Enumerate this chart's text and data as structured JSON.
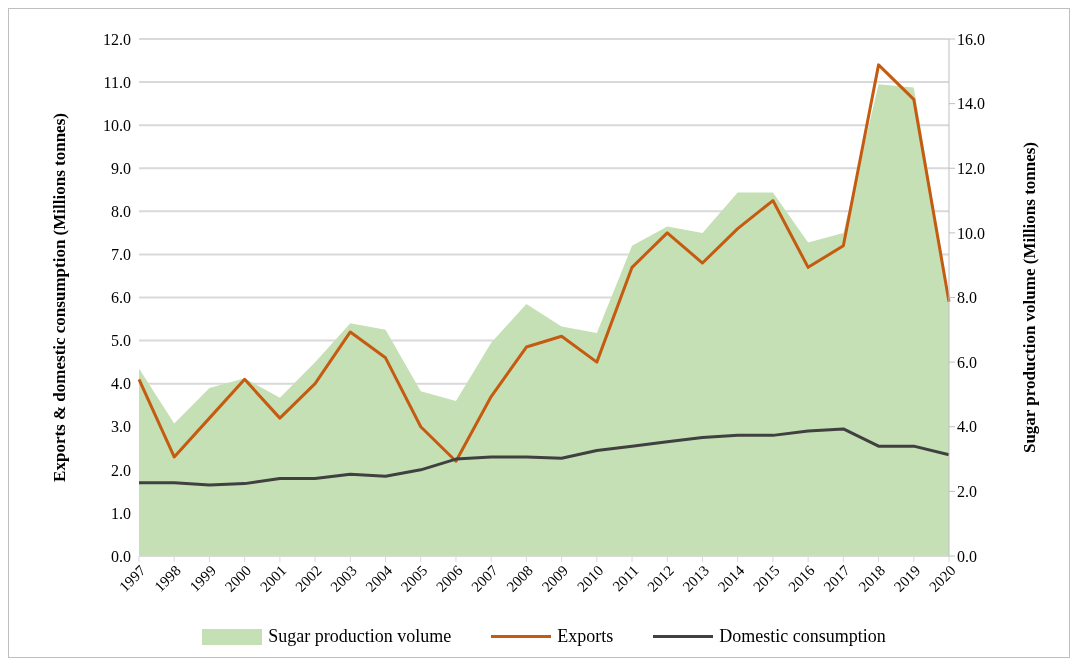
{
  "chart_data": {
    "type": "line",
    "categories": [
      "1997",
      "1998",
      "1999",
      "2000",
      "2001",
      "2002",
      "2003",
      "2004",
      "2005",
      "2006",
      "2007",
      "2008",
      "2009",
      "2010",
      "2011",
      "2012",
      "2013",
      "2014",
      "2015",
      "2016",
      "2017",
      "2018",
      "2019",
      "2020"
    ],
    "ylabel": "Exports & domestic consumption (Millions tonnes)",
    "y2label": "Sugar production volume (Millions tonnes)",
    "series": [
      {
        "name": "Sugar production volume",
        "type": "area",
        "axis": "y2",
        "color": "#c5e0b4",
        "values": [
          5.8,
          4.1,
          5.2,
          5.5,
          4.9,
          6.0,
          7.2,
          7.0,
          5.1,
          4.8,
          6.6,
          7.8,
          7.1,
          6.9,
          9.6,
          10.2,
          10.0,
          11.25,
          11.25,
          9.7,
          10.0,
          14.6,
          14.5,
          8.0
        ]
      },
      {
        "name": "Exports",
        "color": "#c55a11",
        "values": [
          4.1,
          2.3,
          3.2,
          4.1,
          3.2,
          4.0,
          5.2,
          4.6,
          3.0,
          2.2,
          3.7,
          4.85,
          5.1,
          4.5,
          6.7,
          7.5,
          6.8,
          7.6,
          8.25,
          6.7,
          7.2,
          11.4,
          10.6,
          5.9
        ]
      },
      {
        "name": "Domestic consumption",
        "color": "#404040",
        "values": [
          1.7,
          1.7,
          1.65,
          1.68,
          1.8,
          1.8,
          1.9,
          1.85,
          2.0,
          2.25,
          2.3,
          2.3,
          2.27,
          2.45,
          2.55,
          2.65,
          2.75,
          2.8,
          2.8,
          2.9,
          2.95,
          2.55,
          2.55,
          2.35
        ]
      }
    ],
    "ylim": [
      0,
      12
    ],
    "yticks": [
      {
        "value": 0,
        "label": "0.0"
      },
      {
        "value": 1,
        "label": "1.0"
      },
      {
        "value": 2,
        "label": "2.0"
      },
      {
        "value": 3,
        "label": "3.0"
      },
      {
        "value": 4,
        "label": "4.0"
      },
      {
        "value": 5,
        "label": "5.0"
      },
      {
        "value": 6,
        "label": "6.0"
      },
      {
        "value": 7,
        "label": "7.0"
      },
      {
        "value": 8,
        "label": "8.0"
      },
      {
        "value": 9,
        "label": "9.0"
      },
      {
        "value": 10,
        "label": "10.0"
      },
      {
        "value": 11,
        "label": "11.0"
      },
      {
        "value": 12,
        "label": "12.0"
      }
    ],
    "y2lim": [
      0,
      16
    ],
    "y2ticks": [
      {
        "value": 0,
        "label": "0.0"
      },
      {
        "value": 2,
        "label": "2.0"
      },
      {
        "value": 4,
        "label": "4.0"
      },
      {
        "value": 6,
        "label": "6.0"
      },
      {
        "value": 8,
        "label": "8.0"
      },
      {
        "value": 10,
        "label": "10.0"
      },
      {
        "value": 12,
        "label": "12.0"
      },
      {
        "value": 14,
        "label": "14.0"
      },
      {
        "value": 16,
        "label": "16.0"
      }
    ],
    "grid": "y",
    "legend": "bottom",
    "marker": "none",
    "line_style": "solid"
  }
}
